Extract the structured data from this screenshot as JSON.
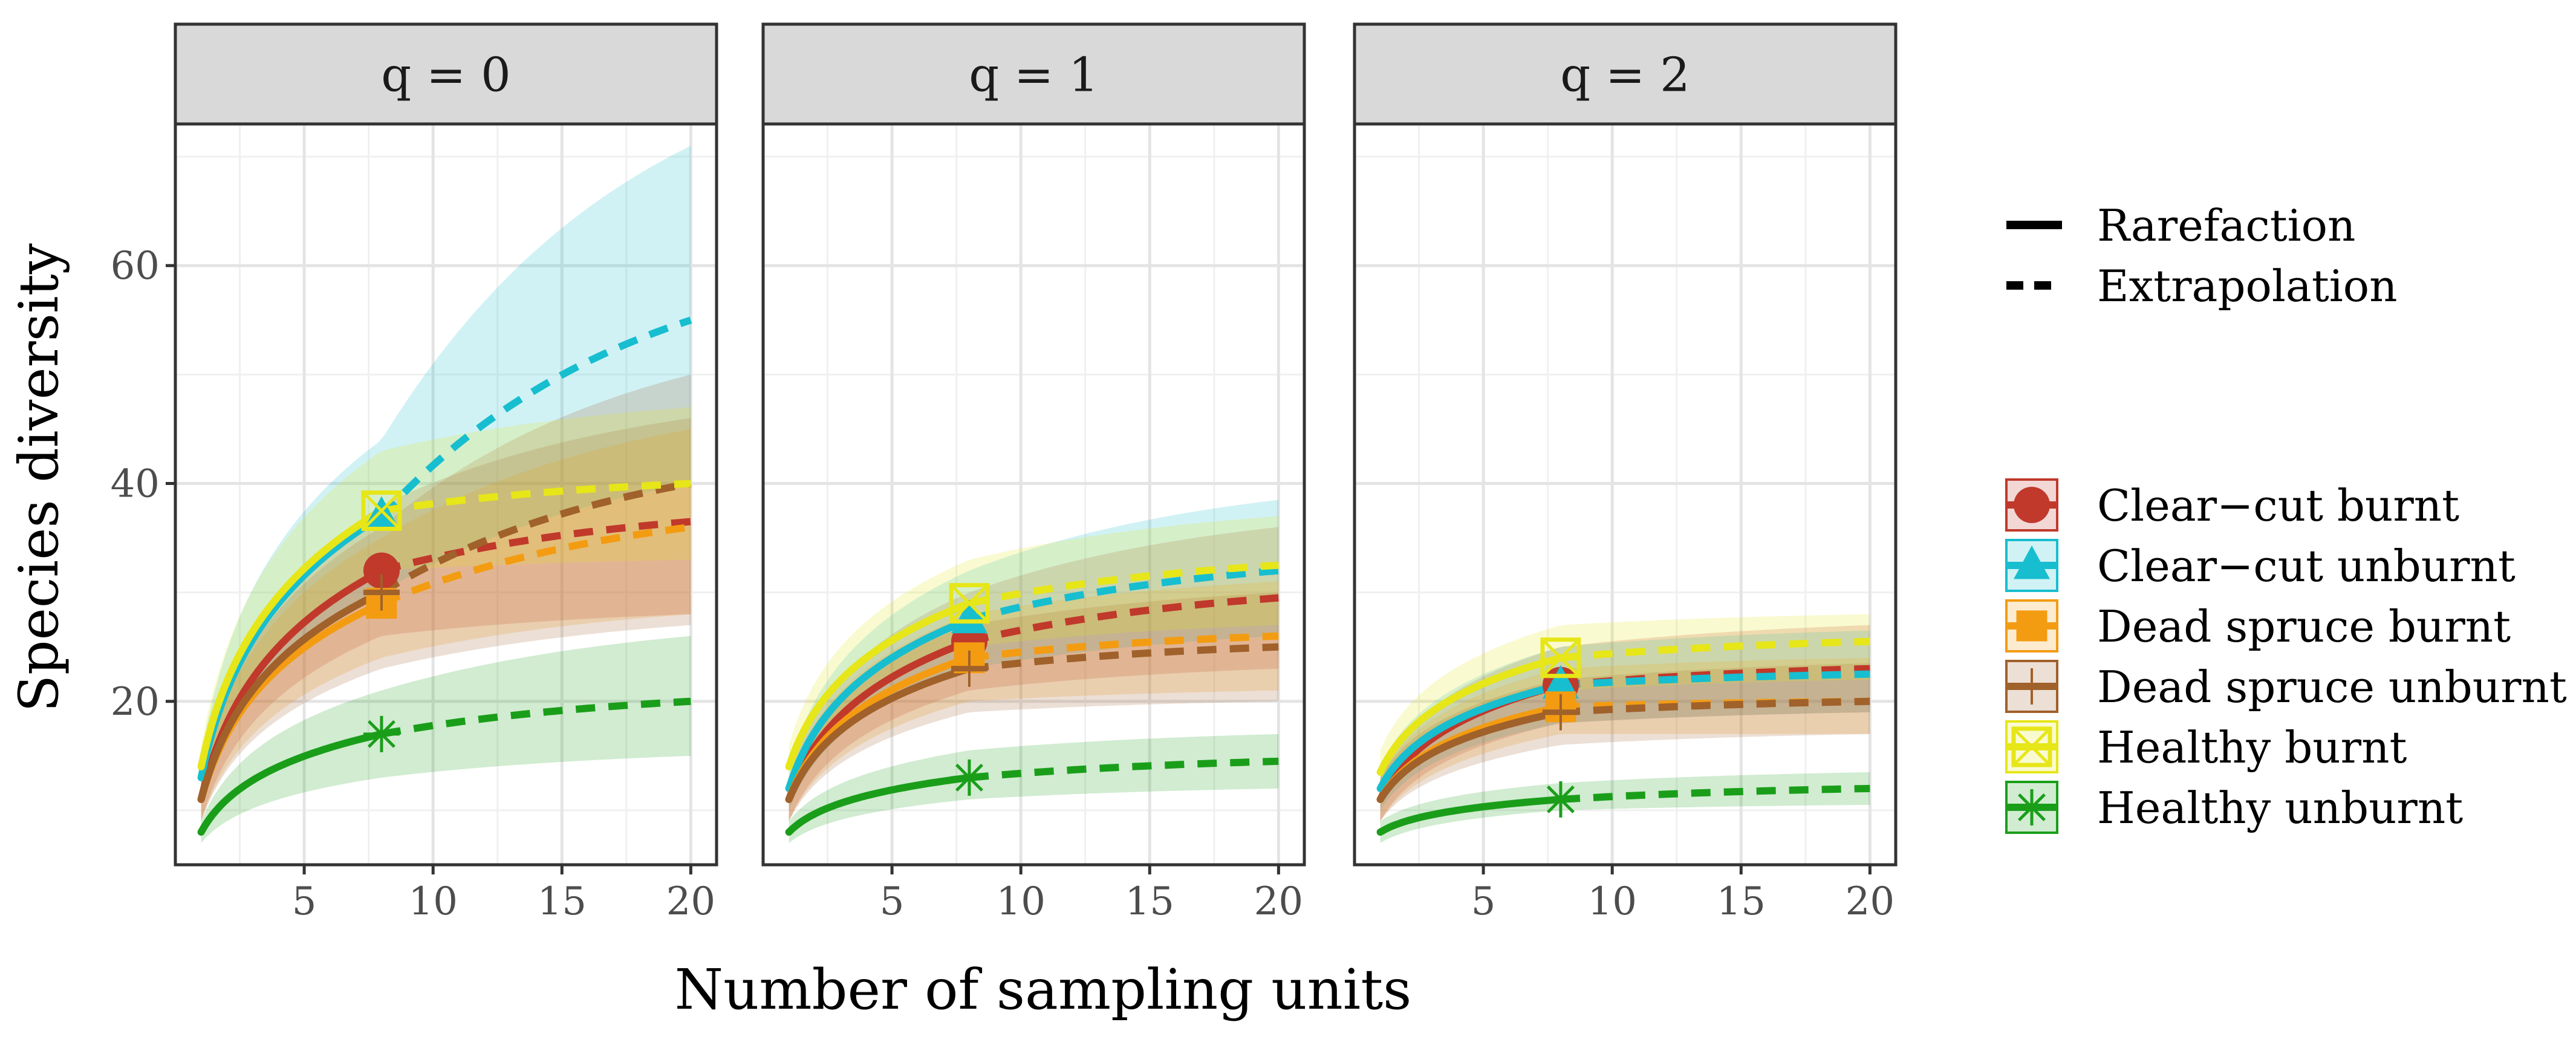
{
  "chart_data": {
    "type": "line",
    "title": "",
    "xlabel": "Number of sampling units",
    "ylabel": "Species diversity",
    "xlim": [
      0,
      21
    ],
    "ylim": [
      5,
      73
    ],
    "x_ticks": [
      5,
      10,
      15,
      20
    ],
    "y_ticks": [
      20,
      40,
      60
    ],
    "grid": true,
    "legend_position": "right",
    "linetype_legend": [
      {
        "label": "Rarefaction",
        "style": "solid"
      },
      {
        "label": "Extrapolation",
        "style": "dashed"
      }
    ],
    "observed_sampling_units": 8,
    "panels": [
      {
        "label": "q = 0",
        "series": [
          {
            "name": "Clear−cut burnt",
            "color": "#c0392b",
            "marker": "circle",
            "x": [
              1,
              8,
              20
            ],
            "y": [
              11,
              32,
              36.5
            ],
            "band": [
              [
                9,
                13
              ],
              [
                26,
                38
              ],
              [
                28,
                46
              ]
            ]
          },
          {
            "name": "Clear−cut unburnt",
            "color": "#17becf",
            "marker": "triangle",
            "x": [
              1,
              8,
              20
            ],
            "y": [
              13,
              37,
              55
            ],
            "band": [
              [
                11,
                15
              ],
              [
                30,
                44
              ],
              [
                40,
                71
              ]
            ]
          },
          {
            "name": "Dead spruce burnt",
            "color": "#f39c12",
            "marker": "square",
            "x": [
              1,
              8,
              20
            ],
            "y": [
              11,
              29,
              36
            ],
            "band": [
              [
                9,
                13
              ],
              [
                24,
                35
              ],
              [
                28,
                45
              ]
            ]
          },
          {
            "name": "Dead spruce unburnt",
            "color": "#a0612b",
            "marker": "crosssquare",
            "x": [
              1,
              8,
              20
            ],
            "y": [
              11,
              30,
              40
            ],
            "band": [
              [
                9,
                13
              ],
              [
                23,
                36
              ],
              [
                27,
                50
              ]
            ]
          },
          {
            "name": "Healthy burnt",
            "color": "#e6e619",
            "marker": "boxx",
            "x": [
              1,
              8,
              20
            ],
            "y": [
              14,
              37.5,
              40
            ],
            "band": [
              [
                12,
                16
              ],
              [
                32,
                43
              ],
              [
                33,
                47
              ]
            ]
          },
          {
            "name": "Healthy unburnt",
            "color": "#1a9e1a",
            "marker": "asterisk",
            "x": [
              1,
              8,
              20
            ],
            "y": [
              8,
              17,
              20
            ],
            "band": [
              [
                7,
                9
              ],
              [
                13,
                21
              ],
              [
                15,
                26
              ]
            ]
          }
        ]
      },
      {
        "label": "q = 1",
        "series": [
          {
            "name": "Clear−cut burnt",
            "color": "#c0392b",
            "marker": "circle",
            "x": [
              1,
              8,
              20
            ],
            "y": [
              11,
              25.5,
              29.5
            ],
            "band": [
              [
                9,
                13
              ],
              [
                21,
                30
              ],
              [
                23,
                36
              ]
            ]
          },
          {
            "name": "Clear−cut unburnt",
            "color": "#17becf",
            "marker": "triangle",
            "x": [
              1,
              8,
              20
            ],
            "y": [
              12,
              27.5,
              32
            ],
            "band": [
              [
                10,
                14
              ],
              [
                23,
                32
              ],
              [
                26,
                38.5
              ]
            ]
          },
          {
            "name": "Dead spruce burnt",
            "color": "#f39c12",
            "marker": "square",
            "x": [
              1,
              8,
              20
            ],
            "y": [
              11,
              24,
              26
            ],
            "band": [
              [
                9,
                13
              ],
              [
                20,
                28
              ],
              [
                21,
                31
              ]
            ]
          },
          {
            "name": "Dead spruce unburnt",
            "color": "#a0612b",
            "marker": "crosssquare",
            "x": [
              1,
              8,
              20
            ],
            "y": [
              11,
              23,
              25
            ],
            "band": [
              [
                9,
                13
              ],
              [
                19,
                27
              ],
              [
                20,
                30
              ]
            ]
          },
          {
            "name": "Healthy burnt",
            "color": "#e6e619",
            "marker": "boxx",
            "x": [
              1,
              8,
              20
            ],
            "y": [
              14,
              29,
              32.5
            ],
            "band": [
              [
                12,
                16
              ],
              [
                25,
                33
              ],
              [
                27,
                37
              ]
            ]
          },
          {
            "name": "Healthy unburnt",
            "color": "#1a9e1a",
            "marker": "asterisk",
            "x": [
              1,
              8,
              20
            ],
            "y": [
              8,
              13,
              14.5
            ],
            "band": [
              [
                7,
                9
              ],
              [
                11,
                15.5
              ],
              [
                12,
                17
              ]
            ]
          }
        ]
      },
      {
        "label": "q = 2",
        "series": [
          {
            "name": "Clear−cut burnt",
            "color": "#c0392b",
            "marker": "circle",
            "x": [
              1,
              8,
              20
            ],
            "y": [
              11,
              21.5,
              23
            ],
            "band": [
              [
                9,
                13
              ],
              [
                18,
                25
              ],
              [
                19,
                27
              ]
            ]
          },
          {
            "name": "Clear−cut unburnt",
            "color": "#17becf",
            "marker": "triangle",
            "x": [
              1,
              8,
              20
            ],
            "y": [
              12,
              21.5,
              22.5
            ],
            "band": [
              [
                10,
                14
              ],
              [
                18,
                25
              ],
              [
                19,
                26.5
              ]
            ]
          },
          {
            "name": "Dead spruce burnt",
            "color": "#f39c12",
            "marker": "square",
            "x": [
              1,
              8,
              20
            ],
            "y": [
              11,
              19.5,
              20
            ],
            "band": [
              [
                9,
                13
              ],
              [
                17,
                23
              ],
              [
                17,
                24
              ]
            ]
          },
          {
            "name": "Dead spruce unburnt",
            "color": "#a0612b",
            "marker": "crosssquare",
            "x": [
              1,
              8,
              20
            ],
            "y": [
              11,
              19,
              20
            ],
            "band": [
              [
                9,
                13
              ],
              [
                16,
                22
              ],
              [
                17,
                23.5
              ]
            ]
          },
          {
            "name": "Healthy burnt",
            "color": "#e6e619",
            "marker": "boxx",
            "x": [
              1,
              8,
              20
            ],
            "y": [
              13.5,
              24,
              25.5
            ],
            "band": [
              [
                11.5,
                15.5
              ],
              [
                21,
                27
              ],
              [
                22,
                28
              ]
            ]
          },
          {
            "name": "Healthy unburnt",
            "color": "#1a9e1a",
            "marker": "asterisk",
            "x": [
              1,
              8,
              20
            ],
            "y": [
              8,
              11,
              12
            ],
            "band": [
              [
                7,
                9
              ],
              [
                10,
                12.5
              ],
              [
                10.5,
                13.5
              ]
            ]
          }
        ]
      }
    ]
  }
}
